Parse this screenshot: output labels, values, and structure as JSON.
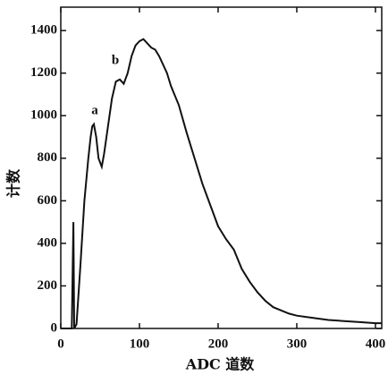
{
  "chart_data": {
    "type": "line",
    "y_label": "计数",
    "x_label": "ADC 道数",
    "annotations": [
      "a",
      "b"
    ],
    "xlim": [
      0,
      408
    ],
    "ylim": [
      0,
      1510
    ],
    "xticks": [
      0,
      100,
      200,
      300,
      400
    ],
    "yticks": [
      0,
      200,
      400,
      600,
      800,
      1000,
      1200,
      1400
    ],
    "series": [
      {
        "color": "#111111",
        "x": [
          0,
          10,
          14,
          16,
          17,
          20,
          25,
          30,
          35,
          38,
          40,
          42,
          45,
          48,
          52,
          55,
          60,
          65,
          70,
          75,
          80,
          85,
          90,
          95,
          100,
          105,
          110,
          115,
          120,
          125,
          130,
          135,
          140,
          150,
          160,
          170,
          180,
          190,
          200,
          210,
          220,
          230,
          240,
          250,
          260,
          270,
          280,
          290,
          300,
          320,
          340,
          360,
          380,
          400,
          408
        ],
        "values": [
          0,
          0,
          0,
          500,
          0,
          20,
          300,
          600,
          800,
          900,
          950,
          960,
          900,
          800,
          760,
          820,
          950,
          1080,
          1160,
          1170,
          1150,
          1200,
          1280,
          1330,
          1350,
          1360,
          1340,
          1320,
          1310,
          1280,
          1240,
          1200,
          1140,
          1050,
          920,
          800,
          680,
          580,
          480,
          420,
          370,
          280,
          220,
          170,
          130,
          100,
          85,
          70,
          60,
          50,
          40,
          35,
          30,
          25,
          25
        ]
      }
    ]
  }
}
